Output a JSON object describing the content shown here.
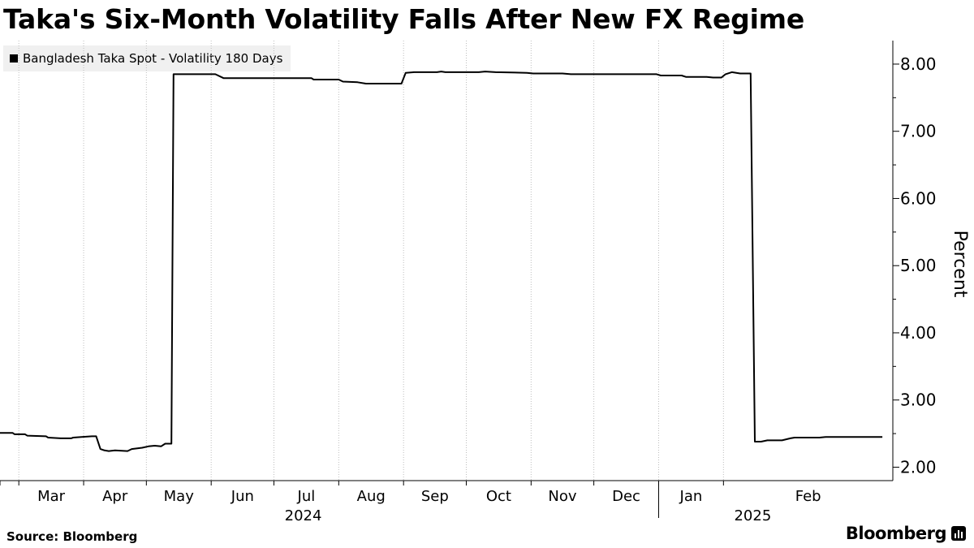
{
  "chart_data": {
    "type": "line",
    "title": "Taka's Six-Month Volatility Falls After New FX Regime",
    "series": [
      {
        "name": "Bangladesh Taka Spot - Volatility 180 Days",
        "color": "#000000",
        "points": [
          [
            "2024-02-21",
            2.51
          ],
          [
            "2024-02-27",
            2.51
          ],
          [
            "2024-02-28",
            2.49
          ],
          [
            "2024-03-04",
            2.49
          ],
          [
            "2024-03-05",
            2.47
          ],
          [
            "2024-03-14",
            2.46
          ],
          [
            "2024-03-15",
            2.44
          ],
          [
            "2024-03-21",
            2.43
          ],
          [
            "2024-03-26",
            2.43
          ],
          [
            "2024-03-27",
            2.44
          ],
          [
            "2024-03-31",
            2.45
          ],
          [
            "2024-04-05",
            2.46
          ],
          [
            "2024-04-07",
            2.46
          ],
          [
            "2024-04-09",
            2.27
          ],
          [
            "2024-04-11",
            2.25
          ],
          [
            "2024-04-13",
            2.24
          ],
          [
            "2024-04-16",
            2.25
          ],
          [
            "2024-04-22",
            2.24
          ],
          [
            "2024-04-24",
            2.27
          ],
          [
            "2024-04-29",
            2.29
          ],
          [
            "2024-05-02",
            2.31
          ],
          [
            "2024-05-05",
            2.32
          ],
          [
            "2024-05-08",
            2.31
          ],
          [
            "2024-05-10",
            2.35
          ],
          [
            "2024-05-13",
            2.35
          ],
          [
            "2024-05-14",
            7.85
          ],
          [
            "2024-06-03",
            7.85
          ],
          [
            "2024-06-07",
            7.79
          ],
          [
            "2024-07-19",
            7.79
          ],
          [
            "2024-07-20",
            7.77
          ],
          [
            "2024-08-01",
            7.77
          ],
          [
            "2024-08-03",
            7.74
          ],
          [
            "2024-08-10",
            7.73
          ],
          [
            "2024-08-14",
            7.71
          ],
          [
            "2024-08-31",
            7.71
          ],
          [
            "2024-09-02",
            7.87
          ],
          [
            "2024-09-06",
            7.88
          ],
          [
            "2024-09-17",
            7.88
          ],
          [
            "2024-09-19",
            7.89
          ],
          [
            "2024-09-21",
            7.88
          ],
          [
            "2024-10-07",
            7.88
          ],
          [
            "2024-10-10",
            7.89
          ],
          [
            "2024-10-15",
            7.88
          ],
          [
            "2024-10-30",
            7.87
          ],
          [
            "2024-11-02",
            7.86
          ],
          [
            "2024-11-16",
            7.86
          ],
          [
            "2024-11-20",
            7.85
          ],
          [
            "2024-12-31",
            7.85
          ],
          [
            "2025-01-02",
            7.83
          ],
          [
            "2025-01-12",
            7.83
          ],
          [
            "2025-01-14",
            7.81
          ],
          [
            "2025-01-24",
            7.81
          ],
          [
            "2025-01-27",
            7.8
          ],
          [
            "2025-01-31",
            7.8
          ],
          [
            "2025-02-02",
            7.85
          ],
          [
            "2025-02-05",
            7.88
          ],
          [
            "2025-02-09",
            7.86
          ],
          [
            "2025-02-14",
            7.86
          ],
          [
            "2025-02-16",
            2.38
          ],
          [
            "2025-02-19",
            2.38
          ],
          [
            "2025-02-22",
            2.4
          ],
          [
            "2025-03-01",
            2.4
          ],
          [
            "2025-03-05",
            2.43
          ],
          [
            "2025-03-07",
            2.44
          ],
          [
            "2025-03-19",
            2.44
          ],
          [
            "2025-03-22",
            2.45
          ],
          [
            "2025-04-18",
            2.45
          ]
        ]
      }
    ],
    "y_axis": {
      "label": "Percent",
      "position": "right",
      "min": 1.8,
      "max": 8.35,
      "ticks": [
        2,
        3,
        4,
        5,
        6,
        7,
        8
      ],
      "tick_labels": [
        "2.00",
        "3.00",
        "4.00",
        "5.00",
        "6.00",
        "7.00",
        "8.00"
      ]
    },
    "x_axis": {
      "min": "2024-02-21",
      "max": "2025-04-23",
      "months": [
        {
          "label": "Mar",
          "date": "2024-03-01"
        },
        {
          "label": "Apr",
          "date": "2024-04-01"
        },
        {
          "label": "May",
          "date": "2024-05-01"
        },
        {
          "label": "Jun",
          "date": "2024-06-01"
        },
        {
          "label": "Jul",
          "date": "2024-07-01"
        },
        {
          "label": "Aug",
          "date": "2024-08-01"
        },
        {
          "label": "Sep",
          "date": "2024-09-01"
        },
        {
          "label": "Oct",
          "date": "2024-10-01"
        },
        {
          "label": "Nov",
          "date": "2024-11-01"
        },
        {
          "label": "Dec",
          "date": "2024-12-01"
        },
        {
          "label": "Jan",
          "date": "2025-01-01"
        },
        {
          "label": "Feb",
          "date": "2025-02-01"
        }
      ],
      "years": [
        {
          "label": "2024",
          "date": "2024-07-15"
        },
        {
          "label": "2025",
          "date": "2025-02-15"
        }
      ]
    },
    "grid": "vertical-dotted",
    "legend_position": "top-left"
  },
  "source": "Source: Bloomberg",
  "brand": "Bloomberg"
}
